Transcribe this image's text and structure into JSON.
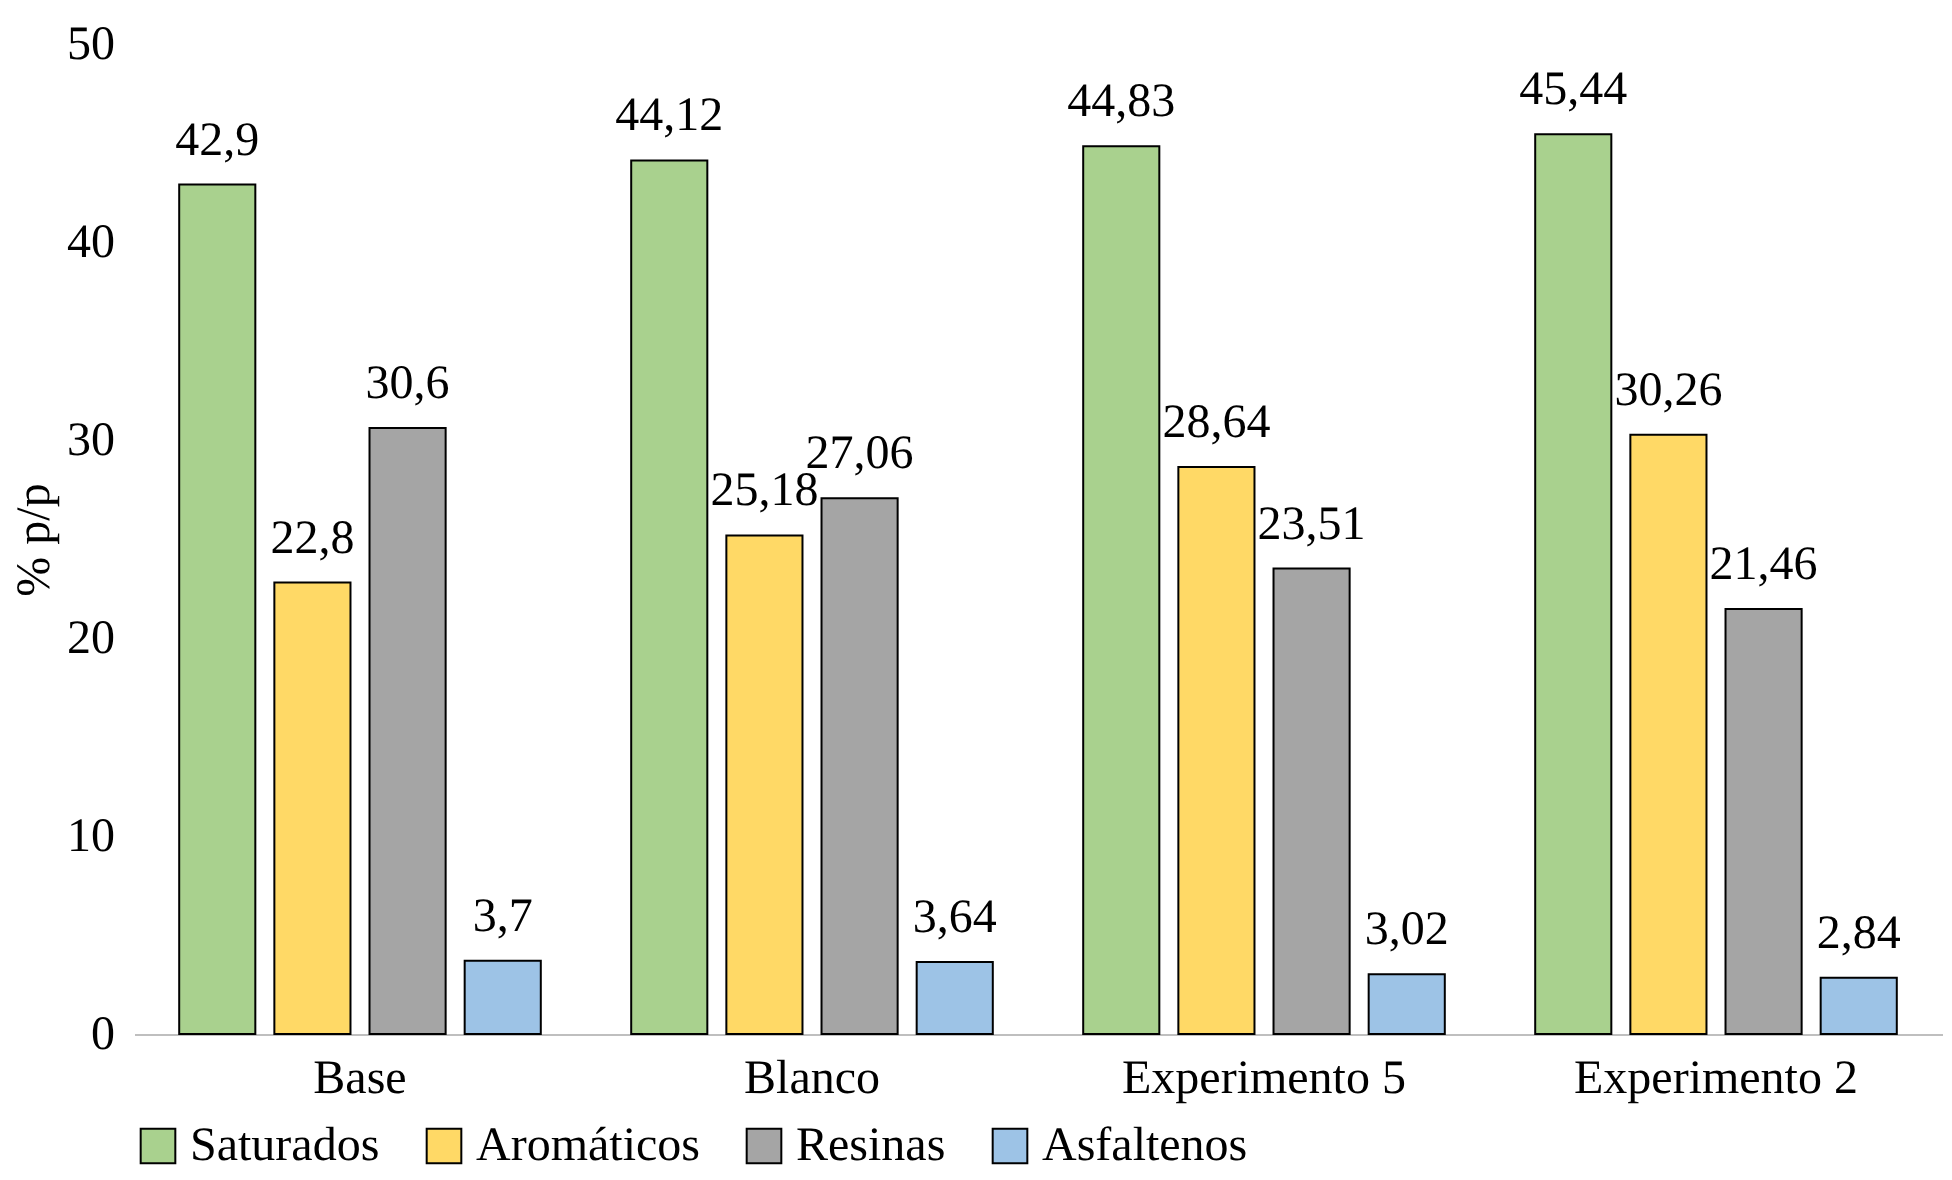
{
  "chart_data": {
    "type": "bar",
    "ylabel": "% p/p",
    "categories": [
      "Base",
      "Blanco",
      "Experimento 5",
      "Experimento 2"
    ],
    "series": [
      {
        "name": "Saturados",
        "color": "#a9d18e",
        "values": [
          42.9,
          44.12,
          44.83,
          45.44
        ],
        "value_labels": [
          "42,9",
          "44,12",
          "44,83",
          "45,44"
        ]
      },
      {
        "name": "Aromáticos",
        "color": "#ffd966",
        "values": [
          22.8,
          25.18,
          28.64,
          30.26
        ],
        "value_labels": [
          "22,8",
          "25,18",
          "28,64",
          "30,26"
        ]
      },
      {
        "name": "Resinas",
        "color": "#a5a5a5",
        "values": [
          30.6,
          27.06,
          23.51,
          21.46
        ],
        "value_labels": [
          "30,6",
          "27,06",
          "23,51",
          "21,46"
        ]
      },
      {
        "name": "Asfaltenos",
        "color": "#9dc3e6",
        "values": [
          3.7,
          3.64,
          3.02,
          2.84
        ],
        "value_labels": [
          "3,7",
          "3,64",
          "3,02",
          "2,84"
        ]
      }
    ],
    "ylim": [
      0,
      50
    ],
    "yticks": [
      0,
      10,
      20,
      30,
      40,
      50
    ],
    "grid": false,
    "legend": "bottom"
  }
}
